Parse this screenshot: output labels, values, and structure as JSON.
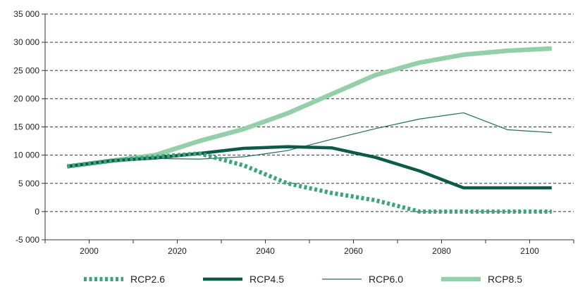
{
  "chart_data": {
    "type": "line",
    "title": "",
    "xlabel": "",
    "ylabel": "",
    "x": [
      1995,
      2005,
      2015,
      2025,
      2035,
      2045,
      2055,
      2065,
      2075,
      2085,
      2095,
      2105
    ],
    "xlim": [
      1990,
      2110
    ],
    "ylim": [
      -5000,
      35000
    ],
    "x_ticks": [
      "2000",
      "2020",
      "2040",
      "2060",
      "2080",
      "2100"
    ],
    "y_ticks": [
      "-5 000",
      "0",
      "5 000",
      "10 000",
      "15 000",
      "20 000",
      "25 000",
      "30 000",
      "35 000"
    ],
    "grid": true,
    "legend_position": "bottom",
    "series": [
      {
        "name": "RCP2.6",
        "color": "#3aa57c",
        "style": "dotted-thick",
        "values": [
          8000,
          9000,
          9700,
          10300,
          8200,
          5000,
          3300,
          2000,
          0,
          0,
          0,
          0
        ]
      },
      {
        "name": "RCP4.5",
        "color": "#0b5b47",
        "style": "solid-thick",
        "values": [
          8000,
          9000,
          9500,
          10300,
          11200,
          11500,
          11300,
          9600,
          7200,
          4200,
          4200,
          4200
        ]
      },
      {
        "name": "RCP6.0",
        "color": "#1e6f55",
        "style": "solid-thin",
        "values": [
          8000,
          9000,
          9400,
          9300,
          9700,
          10800,
          12800,
          14700,
          16400,
          17500,
          14500,
          14000
        ]
      },
      {
        "name": "RCP8.5",
        "color": "#93cfa8",
        "style": "solid-extra-thick",
        "values": [
          8000,
          9000,
          10000,
          12500,
          14600,
          17400,
          20800,
          24200,
          26400,
          27800,
          28500,
          28900
        ]
      }
    ]
  }
}
